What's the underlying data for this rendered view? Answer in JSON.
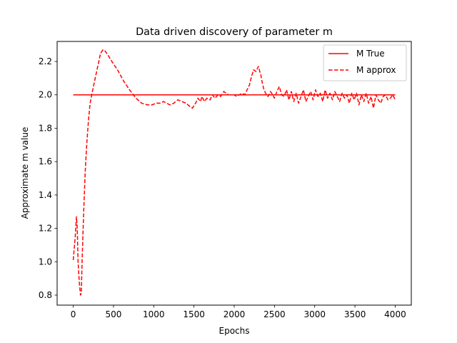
{
  "chart_data": {
    "type": "line",
    "title": "Data driven discovery of parameter m",
    "xlabel": "Epochs",
    "ylabel": "Approximate m value",
    "xlim": [
      -200,
      4200
    ],
    "ylim": [
      0.74,
      2.32
    ],
    "xticks": [
      0,
      500,
      1000,
      1500,
      2000,
      2500,
      3000,
      3500,
      4000
    ],
    "yticks": [
      0.8,
      1.0,
      1.2,
      1.4,
      1.6,
      1.8,
      2.0,
      2.2
    ],
    "ytick_labels": [
      "0.8",
      "1.0",
      "1.2",
      "1.4",
      "1.6",
      "1.8",
      "2.0",
      "2.2"
    ],
    "grid": false,
    "legend_position": "top-right",
    "series": [
      {
        "name": "M True",
        "style": "solid",
        "color": "#ff0000",
        "x": [
          0,
          4000
        ],
        "y": [
          2.0,
          2.0
        ]
      },
      {
        "name": "M approx",
        "style": "dashed",
        "color": "#ff0000",
        "x": [
          0,
          25,
          40,
          50,
          60,
          75,
          90,
          100,
          110,
          130,
          150,
          170,
          190,
          210,
          230,
          260,
          300,
          340,
          370,
          400,
          430,
          480,
          550,
          630,
          700,
          780,
          850,
          920,
          980,
          1030,
          1080,
          1120,
          1160,
          1200,
          1250,
          1300,
          1350,
          1400,
          1450,
          1480,
          1520,
          1550,
          1580,
          1600,
          1630,
          1660,
          1700,
          1730,
          1760,
          1800,
          1830,
          1870,
          1900,
          1930,
          1960,
          2000,
          2030,
          2060,
          2100,
          2130,
          2160,
          2190,
          2210,
          2240,
          2270,
          2300,
          2330,
          2350,
          2370,
          2400,
          2420,
          2450,
          2480,
          2500,
          2530,
          2560,
          2590,
          2620,
          2650,
          2680,
          2710,
          2740,
          2770,
          2800,
          2830,
          2860,
          2890,
          2920,
          2950,
          2980,
          3010,
          3040,
          3070,
          3100,
          3130,
          3160,
          3190,
          3220,
          3250,
          3280,
          3310,
          3340,
          3370,
          3400,
          3430,
          3460,
          3490,
          3520,
          3550,
          3580,
          3610,
          3640,
          3670,
          3700,
          3730,
          3760,
          3790,
          3820,
          3850,
          3880,
          3910,
          3940,
          3970,
          4000
        ],
        "y": [
          1.01,
          1.15,
          1.27,
          1.2,
          1.0,
          0.88,
          0.8,
          0.81,
          1.0,
          1.3,
          1.55,
          1.72,
          1.85,
          1.95,
          2.0,
          2.07,
          2.16,
          2.25,
          2.27,
          2.26,
          2.24,
          2.2,
          2.15,
          2.08,
          2.03,
          1.98,
          1.95,
          1.94,
          1.94,
          1.95,
          1.95,
          1.96,
          1.95,
          1.94,
          1.95,
          1.97,
          1.96,
          1.95,
          1.93,
          1.92,
          1.95,
          1.98,
          1.96,
          1.99,
          1.96,
          1.98,
          1.97,
          2.0,
          1.98,
          2.0,
          1.99,
          2.02,
          2.01,
          2.0,
          2.0,
          2.0,
          1.99,
          2.0,
          2.01,
          2.0,
          2.03,
          2.06,
          2.1,
          2.15,
          2.14,
          2.17,
          2.12,
          2.07,
          2.03,
          2.0,
          1.99,
          2.02,
          2.0,
          1.98,
          2.02,
          2.05,
          2.0,
          1.99,
          2.03,
          1.97,
          2.02,
          1.96,
          2.01,
          1.95,
          1.99,
          2.03,
          1.96,
          1.99,
          2.02,
          1.97,
          2.03,
          1.99,
          2.01,
          1.96,
          2.03,
          1.98,
          2.01,
          1.97,
          2.02,
          1.99,
          1.96,
          2.01,
          1.98,
          2.0,
          1.95,
          2.01,
          1.97,
          2.01,
          1.94,
          2.0,
          1.96,
          2.01,
          1.95,
          1.99,
          1.92,
          2.0,
          1.97,
          1.95,
          1.99,
          2.0,
          1.97,
          1.98,
          2.0,
          1.97
        ]
      }
    ]
  }
}
